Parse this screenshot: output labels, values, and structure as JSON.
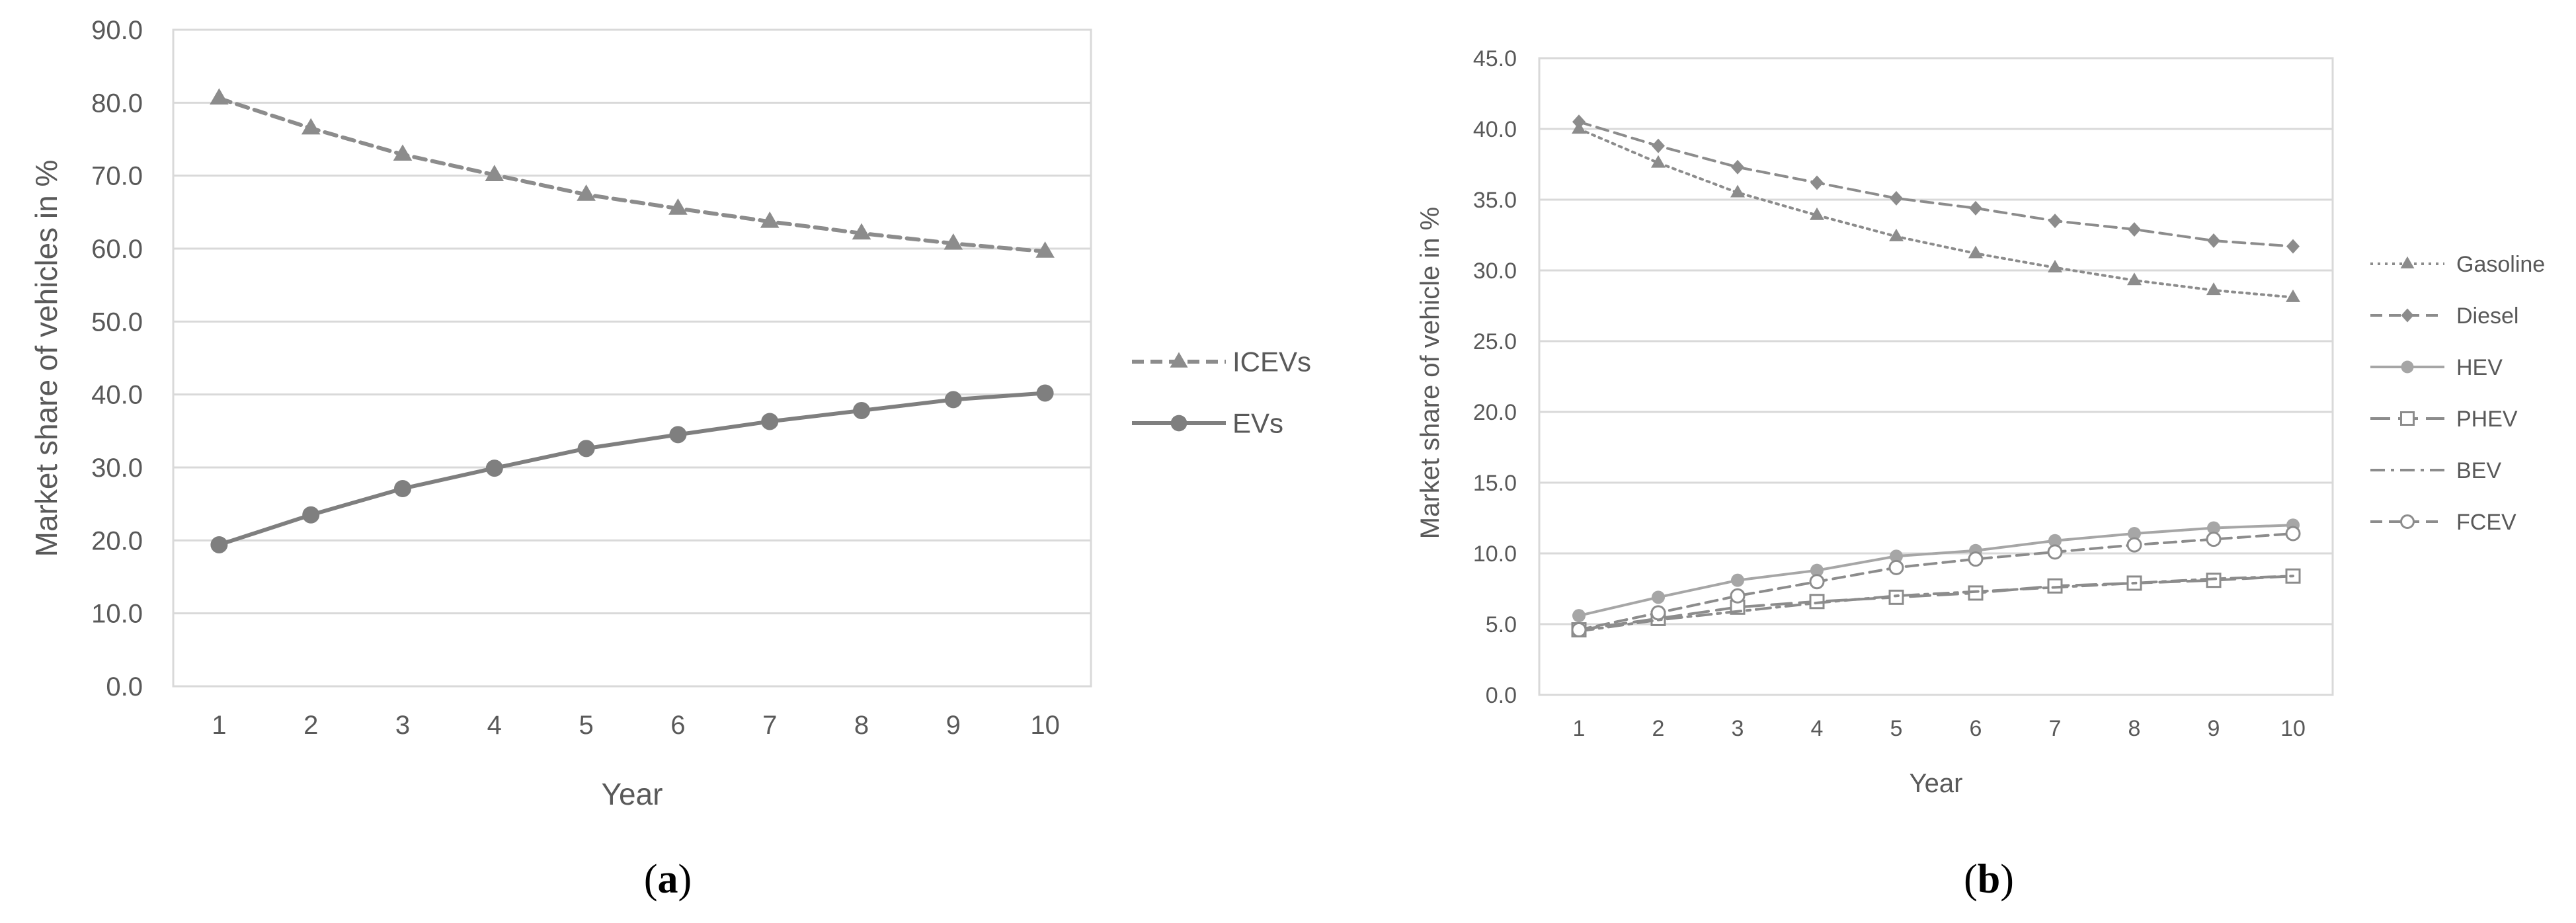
{
  "chart_data": [
    {
      "type": "line",
      "panel_label": "a",
      "title": "",
      "xlabel": "Year",
      "ylabel": "Market share of vehicles in %",
      "categories": [
        "1",
        "2",
        "3",
        "4",
        "5",
        "6",
        "7",
        "8",
        "9",
        "10"
      ],
      "ylim": [
        0,
        90
      ],
      "ystep": 10,
      "ytick_labels": [
        "0.0",
        "10.0",
        "20.0",
        "30.0",
        "40.0",
        "50.0",
        "60.0",
        "70.0",
        "80.0",
        "90.0"
      ],
      "grid": true,
      "legend": "right",
      "series": [
        {
          "name": "ICEVs",
          "style": "dashed",
          "marker": "triangle",
          "color": "#8c8c8c",
          "values": [
            80.6,
            76.5,
            72.9,
            70.1,
            67.4,
            65.5,
            63.7,
            62.1,
            60.7,
            59.6
          ]
        },
        {
          "name": "EVs",
          "style": "solid",
          "marker": "circle",
          "color": "#7f7f7f",
          "values": [
            19.4,
            23.5,
            27.1,
            29.9,
            32.6,
            34.5,
            36.3,
            37.8,
            39.3,
            40.2
          ]
        }
      ]
    },
    {
      "type": "line",
      "panel_label": "b",
      "title": "",
      "xlabel": "Year",
      "ylabel": "Market share of vehicle in %",
      "categories": [
        "1",
        "2",
        "3",
        "4",
        "5",
        "6",
        "7",
        "8",
        "9",
        "10"
      ],
      "ylim": [
        0,
        45
      ],
      "ystep": 5,
      "ytick_labels": [
        "0.0",
        "5.0",
        "10.0",
        "15.0",
        "20.0",
        "25.0",
        "30.0",
        "35.0",
        "40.0",
        "45.0"
      ],
      "grid": true,
      "legend": "right",
      "series": [
        {
          "name": "Gasoline",
          "style": "dotted",
          "marker": "triangle",
          "color": "#8c8c8c",
          "values": [
            40.0,
            37.6,
            35.5,
            33.9,
            32.4,
            31.2,
            30.2,
            29.3,
            28.6,
            28.1
          ]
        },
        {
          "name": "Diesel",
          "style": "dashed",
          "marker": "diamond",
          "color": "#8c8c8c",
          "values": [
            40.5,
            38.8,
            37.3,
            36.2,
            35.1,
            34.4,
            33.5,
            32.9,
            32.1,
            31.7
          ]
        },
        {
          "name": "HEV",
          "style": "solid",
          "marker": "circle",
          "color": "#a6a6a6",
          "values": [
            5.6,
            6.9,
            8.1,
            8.8,
            9.8,
            10.2,
            10.9,
            11.4,
            11.8,
            12.0
          ]
        },
        {
          "name": "PHEV",
          "style": "longdash",
          "marker": "square",
          "color": "#8c8c8c",
          "values": [
            4.6,
            5.4,
            6.2,
            6.6,
            6.9,
            7.2,
            7.7,
            7.9,
            8.1,
            8.4
          ]
        },
        {
          "name": "BEV",
          "style": "dashdot",
          "marker": "none",
          "color": "#8c8c8c",
          "values": [
            4.5,
            5.3,
            5.9,
            6.5,
            7.0,
            7.3,
            7.6,
            7.9,
            8.2,
            8.4
          ]
        },
        {
          "name": "FCEV",
          "style": "dashed",
          "marker": "opencircle",
          "color": "#8c8c8c",
          "values": [
            4.6,
            5.8,
            7.0,
            8.0,
            9.0,
            9.6,
            10.1,
            10.6,
            11.0,
            11.4
          ]
        }
      ]
    }
  ]
}
